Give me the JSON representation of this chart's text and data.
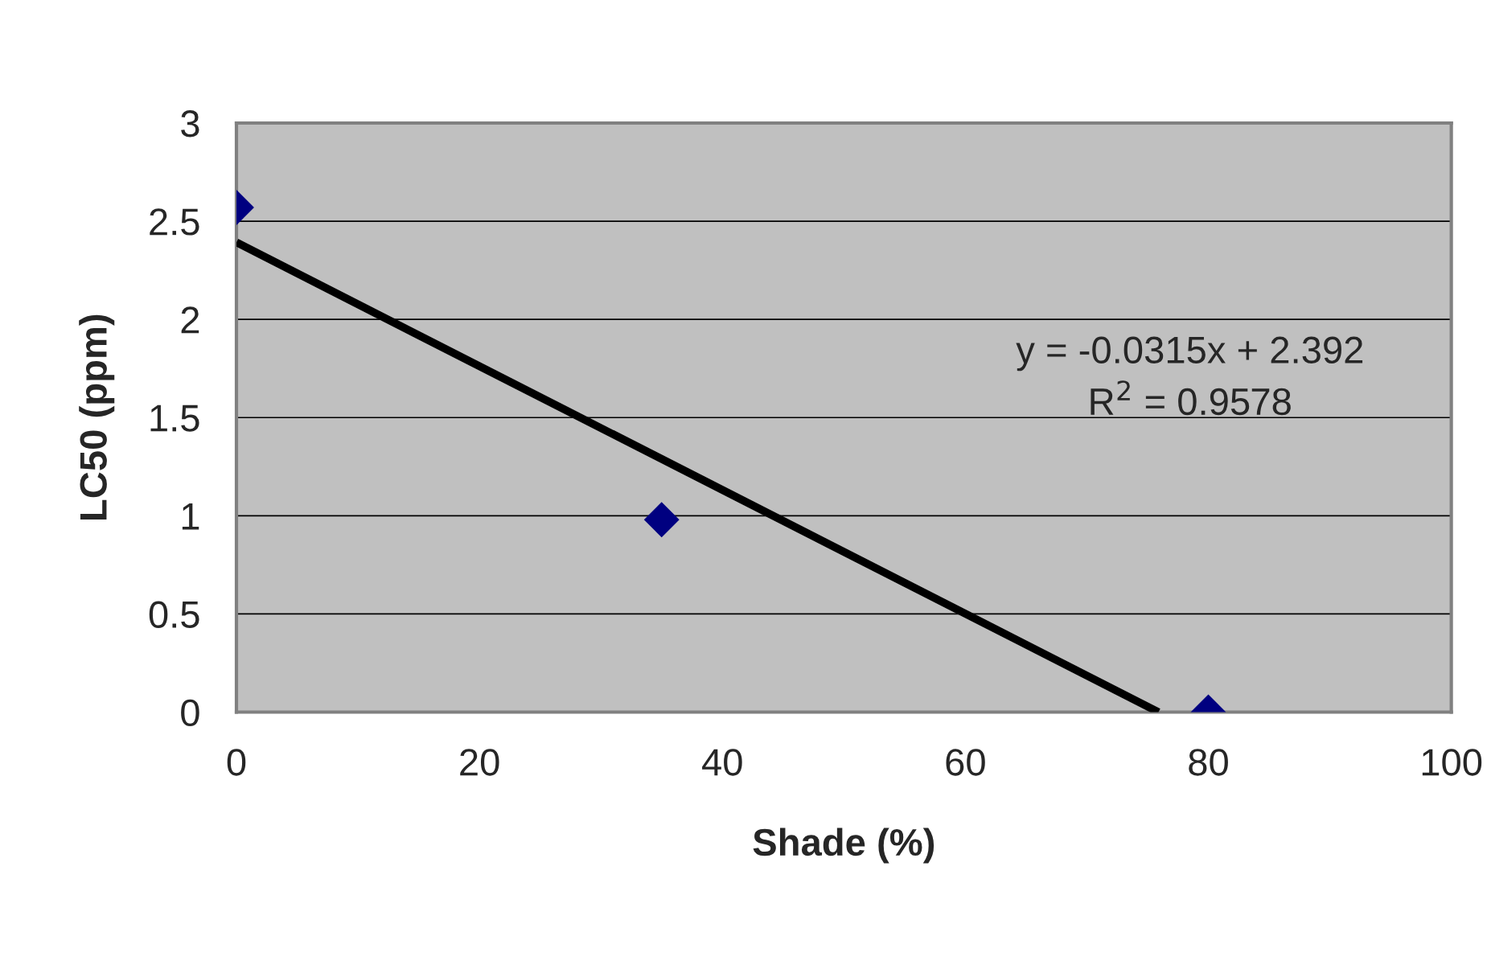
{
  "chart_data": {
    "type": "scatter",
    "xlabel": "Shade (%)",
    "ylabel": "LC50 (ppm)",
    "x": [
      0,
      35,
      80
    ],
    "series": [
      {
        "color": "#000080",
        "marker": "diamond",
        "values": [
          2.57,
          0.98,
          0
        ]
      },
      {
        "type": "line",
        "color": "#000000",
        "marker": "none",
        "line_style": "solid",
        "x": [
          0,
          75.9
        ],
        "values": [
          2.392,
          0
        ]
      }
    ],
    "annotations": [
      "y = -0.0315x + 2.392\nR$^{2}$ = 0.9578"
    ],
    "xlim": [
      0,
      100
    ],
    "xticks": [
      0,
      20,
      40,
      60,
      80,
      100
    ],
    "ylim": [
      0,
      3
    ],
    "yticks": [
      0,
      0.5,
      1,
      1.5,
      2,
      2.5,
      3
    ],
    "grid": "y",
    "legend": false
  }
}
